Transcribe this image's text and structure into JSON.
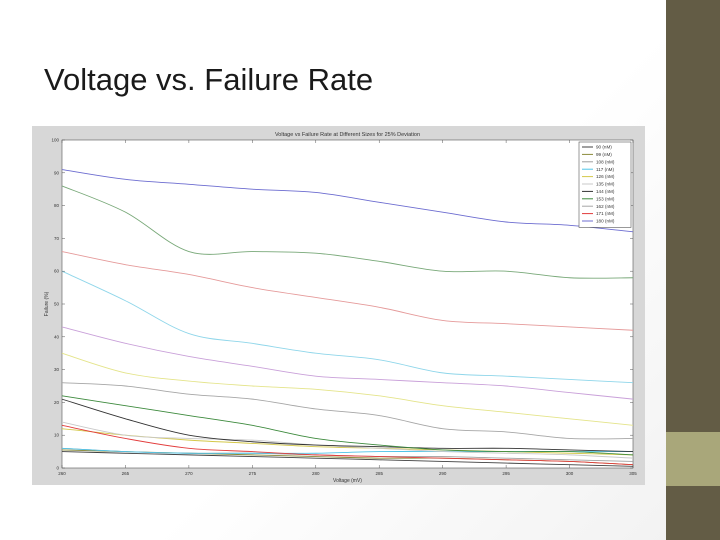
{
  "slide": {
    "title": "Voltage vs. Failure Rate"
  },
  "theme": {
    "sidebar_color": "#635c45",
    "accent_color": "#a9a77a",
    "figure_bg": "#d7d7d7"
  },
  "chart_data": {
    "type": "line",
    "title": "Voltage vs Failure Rate at Different Sizes for 25% Deviation",
    "xlabel": "Voltage (mV)",
    "ylabel": "Failure (%)",
    "xlim": [
      260,
      305
    ],
    "ylim": [
      0,
      100
    ],
    "xticks": [
      260,
      265,
      270,
      275,
      280,
      285,
      290,
      295,
      300,
      305
    ],
    "yticks": [
      0,
      10,
      20,
      30,
      40,
      50,
      60,
      70,
      80,
      90,
      100
    ],
    "grid": false,
    "legend_position": "top-right",
    "x": [
      260,
      265,
      270,
      275,
      280,
      285,
      290,
      295,
      300,
      305
    ],
    "series": [
      {
        "name": "90 (nM)",
        "color": "#404040",
        "values": [
          5,
          4.5,
          4,
          3.5,
          3,
          2.5,
          2,
          1.5,
          1,
          0.5
        ]
      },
      {
        "name": "99 (nM)",
        "color": "#8a8a3a",
        "values": [
          5.5,
          5,
          4.5,
          4,
          3.5,
          3,
          3,
          2.5,
          2,
          1
        ]
      },
      {
        "name": "108 (nM)",
        "color": "#a0a0a0",
        "values": [
          6,
          5,
          4.5,
          4.5,
          4,
          3.5,
          3.5,
          3,
          2.5,
          2
        ]
      },
      {
        "name": "117 (nM)",
        "color": "#4fc4e8",
        "values": [
          6,
          5,
          4.5,
          4.5,
          4.5,
          5,
          5,
          5,
          5,
          5
        ]
      },
      {
        "name": "126 (nM)",
        "color": "#d4c84a",
        "values": [
          12,
          10,
          8.5,
          7.5,
          6.5,
          6,
          5.5,
          5,
          4.5,
          4
        ]
      },
      {
        "name": "135 (nM)",
        "color": "#c9c9c9",
        "values": [
          14,
          10,
          9,
          8.5,
          7,
          6,
          5,
          4.5,
          4,
          3
        ]
      },
      {
        "name": "144 (nM)",
        "color": "#333333",
        "values": [
          21,
          15,
          10,
          8,
          7,
          6.5,
          6,
          6,
          5.5,
          5
        ]
      },
      {
        "name": "153 (nM)",
        "color": "#3d8a3d",
        "values": [
          22,
          19,
          16,
          13,
          9,
          7,
          5.5,
          5,
          5,
          4
        ]
      },
      {
        "name": "162 (nM)",
        "color": "#a6a6a6",
        "values": [
          26,
          25,
          22.5,
          21,
          18,
          16,
          12,
          11,
          9,
          9
        ]
      },
      {
        "name": "171 (nM)",
        "color": "#e23b3b",
        "values": [
          13,
          9,
          6,
          5,
          4,
          3.5,
          3,
          2.5,
          2,
          1
        ]
      },
      {
        "name": "180 (nM)",
        "color": "#6c6cd0",
        "values": [
          91,
          88,
          86.5,
          85,
          84,
          81,
          78,
          75,
          74,
          72
        ]
      },
      {
        "name": "",
        "color": "#78a878",
        "values": [
          86,
          78,
          66,
          66,
          65.5,
          63,
          60,
          60,
          58,
          58
        ]
      },
      {
        "name": "",
        "color": "#e59a9a",
        "values": [
          66,
          62,
          59,
          55,
          52,
          49,
          45,
          44,
          43,
          42
        ]
      },
      {
        "name": "",
        "color": "#8fd6ea",
        "values": [
          60,
          51,
          41,
          38,
          35,
          33,
          29,
          28,
          27,
          26
        ]
      },
      {
        "name": "",
        "color": "#c9a0d9",
        "values": [
          43,
          38,
          34,
          31,
          28,
          27,
          26,
          25,
          23,
          21
        ]
      },
      {
        "name": "",
        "color": "#e4e48a",
        "values": [
          35,
          29,
          26.5,
          25,
          24,
          22,
          19,
          17,
          15,
          13
        ]
      }
    ]
  }
}
